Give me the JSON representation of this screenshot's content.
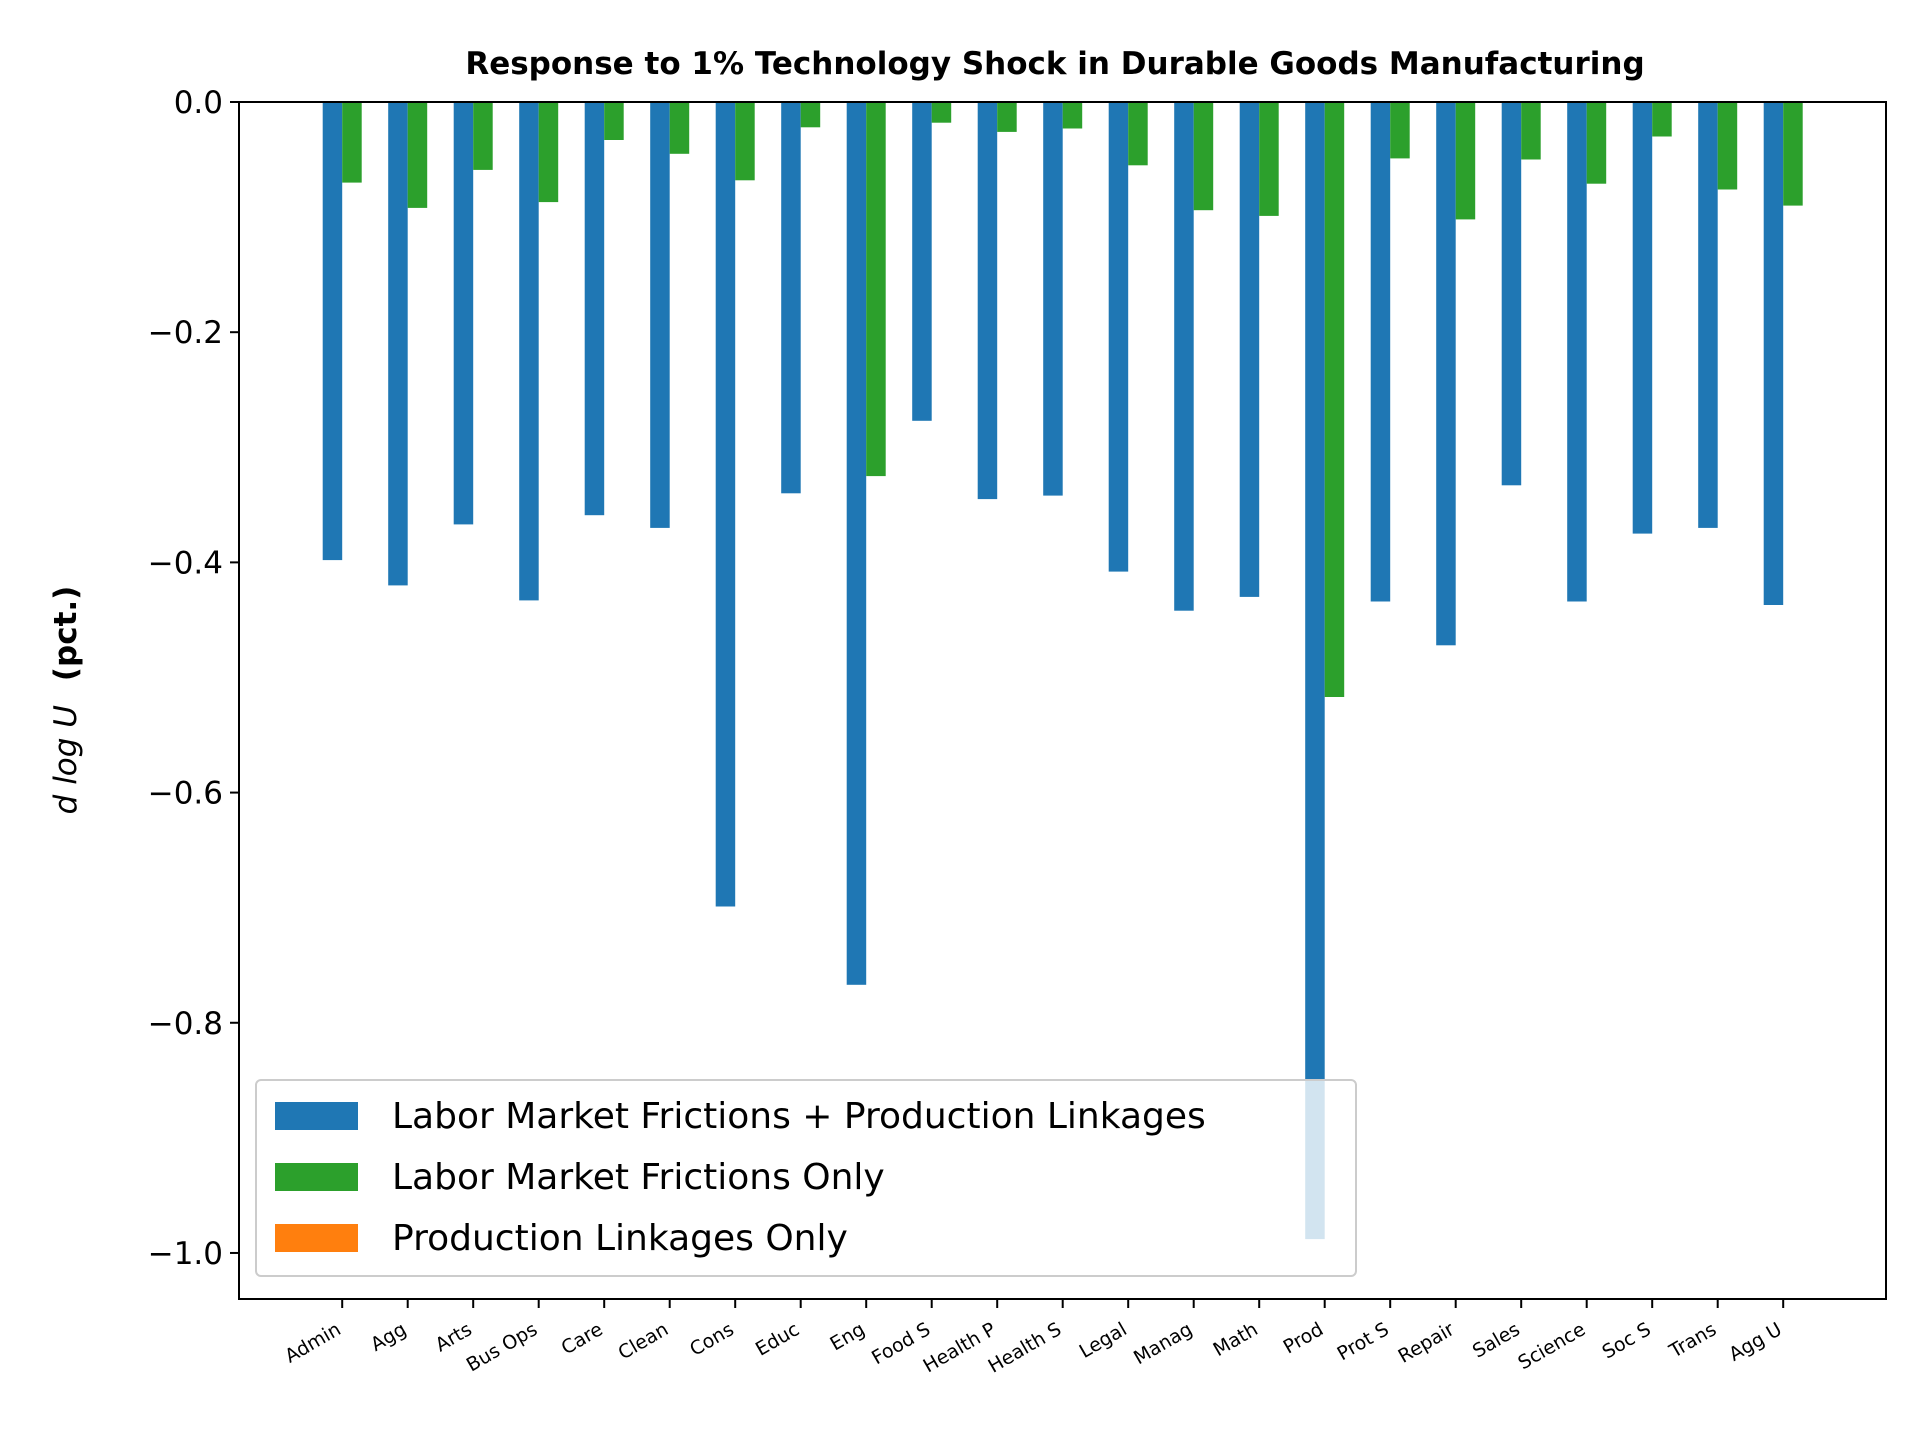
{
  "chart_data": {
    "type": "bar",
    "title": "Response to 1% Technology Shock in Durable Goods Manufacturing",
    "ylabel_math": "d log U",
    "ylabel_text": "(pct.)",
    "ylim": [
      -1.04,
      0.0
    ],
    "yticks": [
      0.0,
      -0.2,
      -0.4,
      -0.6,
      -0.8,
      -1.0
    ],
    "ytick_labels": [
      "0.0",
      "−0.2",
      "−0.4",
      "−0.6",
      "−0.8",
      "−1.0"
    ],
    "legend_position": "lower-left",
    "categories": [
      "Admin",
      "Agg",
      "Arts",
      "Bus Ops",
      "Care",
      "Clean",
      "Cons",
      "Educ",
      "Eng",
      "Food S",
      "Health P",
      "Health S",
      "Legal",
      "Manag",
      "Math",
      "Prod",
      "Prot S",
      "Repair",
      "Sales",
      "Science",
      "Soc S",
      "Trans",
      "Agg U"
    ],
    "series": [
      {
        "name": "Labor Market Frictions + Production Linkages",
        "color": "#1f77b4",
        "values": [
          -0.398,
          -0.42,
          -0.367,
          -0.433,
          -0.359,
          -0.37,
          -0.699,
          -0.34,
          -0.767,
          -0.277,
          -0.345,
          -0.342,
          -0.408,
          -0.442,
          -0.43,
          -0.988,
          -0.434,
          -0.472,
          -0.333,
          -0.434,
          -0.375,
          -0.37,
          -0.437
        ]
      },
      {
        "name": "Labor Market Frictions Only",
        "color": "#2ca02c",
        "values": [
          -0.07,
          -0.092,
          -0.059,
          -0.087,
          -0.033,
          -0.045,
          -0.068,
          -0.022,
          -0.325,
          -0.018,
          -0.026,
          -0.023,
          -0.055,
          -0.094,
          -0.099,
          -0.517,
          -0.049,
          -0.102,
          -0.05,
          -0.071,
          -0.03,
          -0.076,
          -0.09
        ]
      },
      {
        "name": "Production Linkages Only",
        "color": "#ff7f0e",
        "values": [
          0,
          0,
          0,
          0,
          0,
          0,
          0,
          0,
          0,
          0,
          0,
          0,
          0,
          0,
          0,
          0,
          0,
          0,
          0,
          0,
          0,
          0,
          0
        ]
      }
    ]
  }
}
